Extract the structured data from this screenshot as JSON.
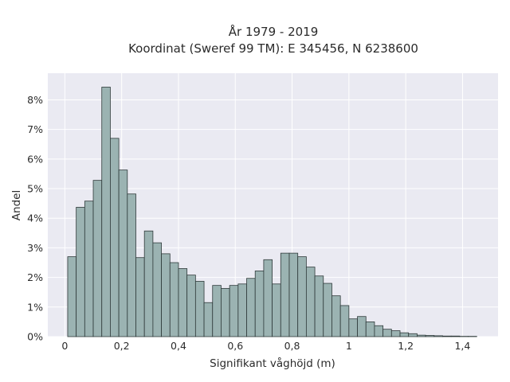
{
  "chart_data": {
    "type": "bar",
    "title_line1": "År 1979 - 2019",
    "title_line2": "Koordinat (Sweref 99 TM): E 345456, N 6238600",
    "xlabel": "Signifikant våghöjd (m)",
    "ylabel": "Andel",
    "xlim": [
      -0.06,
      1.525
    ],
    "ylim": [
      0,
      8.9
    ],
    "bin_width": 0.03,
    "x_ticks": [
      0,
      0.2,
      0.4,
      0.6,
      0.8,
      1.0,
      1.2,
      1.4
    ],
    "x_tick_labels": [
      "0",
      "0,2",
      "0,4",
      "0,6",
      "0,8",
      "1",
      "1,2",
      "1,4"
    ],
    "y_ticks": [
      0,
      1,
      2,
      3,
      4,
      5,
      6,
      7,
      8
    ],
    "y_tick_labels": [
      "0%",
      "1%",
      "2%",
      "3%",
      "4%",
      "5%",
      "6%",
      "7%",
      "8%"
    ],
    "grid": true,
    "background": "#eaeaf2",
    "bar_color": "#9bb3b2",
    "bins_start": [
      0.01,
      0.04,
      0.07,
      0.1,
      0.13,
      0.16,
      0.19,
      0.22,
      0.25,
      0.28,
      0.31,
      0.34,
      0.37,
      0.4,
      0.43,
      0.46,
      0.49,
      0.52,
      0.55,
      0.58,
      0.61,
      0.64,
      0.67,
      0.7,
      0.73,
      0.76,
      0.79,
      0.82,
      0.85,
      0.88,
      0.91,
      0.94,
      0.97,
      1.0,
      1.03,
      1.06,
      1.09,
      1.12,
      1.15,
      1.18,
      1.21,
      1.24,
      1.27,
      1.3,
      1.33,
      1.36,
      1.39,
      1.42
    ],
    "values": [
      2.7,
      4.37,
      4.58,
      5.28,
      8.43,
      6.7,
      5.63,
      4.82,
      2.67,
      3.57,
      3.17,
      2.8,
      2.5,
      2.3,
      2.08,
      1.87,
      1.15,
      1.73,
      1.63,
      1.73,
      1.78,
      1.97,
      2.22,
      2.6,
      1.78,
      2.82,
      2.82,
      2.7,
      2.35,
      2.05,
      1.8,
      1.38,
      1.05,
      0.6,
      0.68,
      0.5,
      0.37,
      0.25,
      0.2,
      0.13,
      0.1,
      0.05,
      0.04,
      0.03,
      0.02,
      0.02,
      0.01,
      0.01
    ]
  }
}
